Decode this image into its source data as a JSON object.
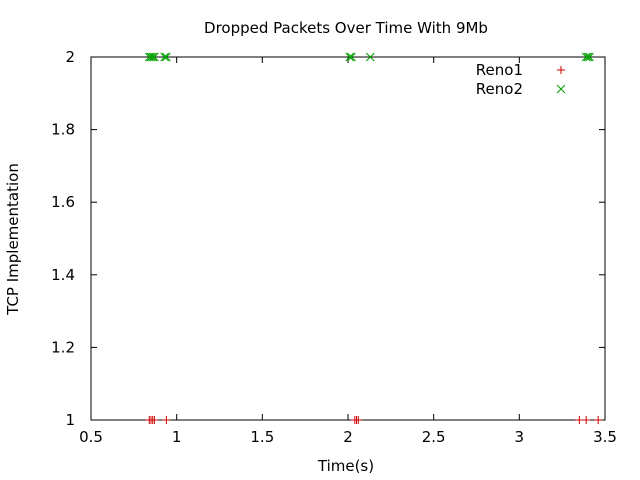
{
  "chart_data": {
    "type": "scatter",
    "title": "Dropped Packets Over Time With 9Mb",
    "xlabel": "Time(s)",
    "ylabel": "TCP Implementation",
    "xlim": [
      0.5,
      3.5
    ],
    "ylim": [
      1,
      2
    ],
    "xticks": [
      0.5,
      1,
      1.5,
      2,
      2.5,
      3,
      3.5
    ],
    "xtick_labels": [
      "0.5",
      "1",
      "1.5",
      "2",
      "2.5",
      "3",
      "3.5"
    ],
    "yticks": [
      1,
      1.2,
      1.4,
      1.6,
      1.8,
      2
    ],
    "ytick_labels": [
      "1",
      "1.2",
      "1.4",
      "1.6",
      "1.8",
      "2"
    ],
    "grid": false,
    "legend_position": "top-right",
    "series": [
      {
        "name": "Reno1",
        "marker": "+",
        "color": "#cc0000",
        "x": [
          0.84,
          0.85,
          0.86,
          0.87,
          0.94,
          2.04,
          2.05,
          2.06,
          3.35,
          3.39,
          3.46
        ],
        "y": [
          1,
          1,
          1,
          1,
          1,
          1,
          1,
          1,
          1,
          1,
          1
        ]
      },
      {
        "name": "Reno2",
        "marker": "x",
        "color": "#00a000",
        "x": [
          0.84,
          0.85,
          0.86,
          0.87,
          0.93,
          0.94,
          2.01,
          2.02,
          2.13,
          3.39,
          3.4,
          3.41
        ],
        "y": [
          2,
          2,
          2,
          2,
          2,
          2,
          2,
          2,
          2,
          2,
          2,
          2
        ]
      }
    ]
  }
}
